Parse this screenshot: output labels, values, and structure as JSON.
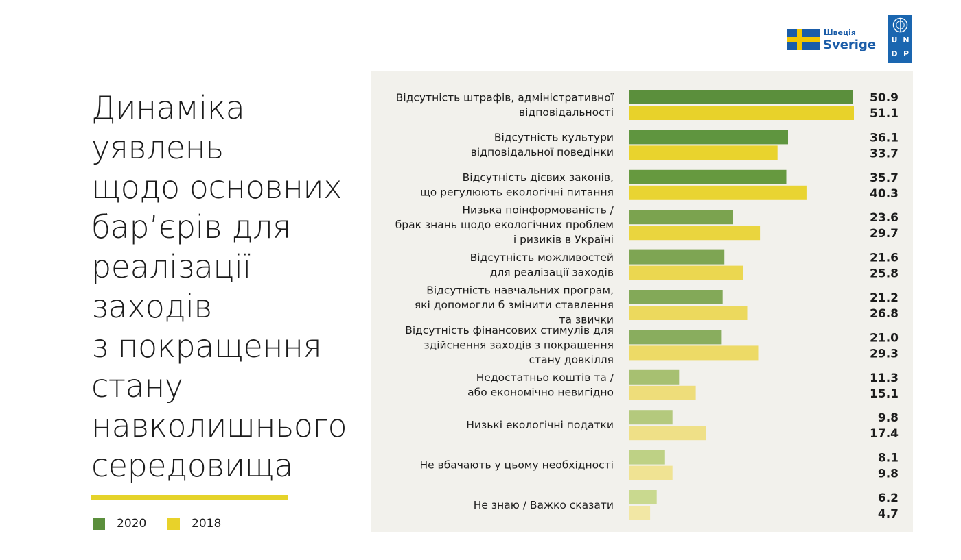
{
  "header": {
    "sweden_small": "Швеція",
    "sweden_big": "Sverige",
    "undp_letters": [
      "U",
      "N",
      "D",
      "P"
    ]
  },
  "title": "Динаміка\nуявлень\nщодо основних\nбар’єрів для\nреалізації\nзаходів\nз покращення\nстану\nнавколишнього\nсередовища",
  "legend": [
    {
      "label": "2020",
      "color": "#5b8f3c"
    },
    {
      "label": "2018",
      "color": "#e8d22a"
    }
  ],
  "colors": {
    "accent_rule": "#e5d32a",
    "panel_bg": "#f2f1ec"
  },
  "chart_data": {
    "type": "bar",
    "orientation": "horizontal",
    "categories": [
      "Відсутність штрафів, адміністративної\nвідповідальності",
      "Відсутність культури\nвідповідальної поведінки",
      "Відсутність дієвих законів,\nщо регулюють екологічні питання",
      "Низька поінформованість /\nбрак знань щодо екологічних проблем\nі ризиків в Україні",
      "Відсутність можливостей\nдля реалізації заходів",
      "Відсутність навчальних програм,\nякі допомогли б змінити ставлення\nта звички",
      "Відсутність фінансових стимулів для\nздійснення заходів з покращення\nстану довкілля",
      "Недостатньо коштів та /\nабо економічно невигідно",
      "Низькі екологічні податки",
      "Не вбачають у цьому необхідності",
      "Не знаю / Важко сказати"
    ],
    "series": [
      {
        "name": "2020",
        "values": [
          50.9,
          36.1,
          35.7,
          23.6,
          21.6,
          21.2,
          21.0,
          11.3,
          9.8,
          8.1,
          6.2
        ]
      },
      {
        "name": "2018",
        "values": [
          51.1,
          33.7,
          40.3,
          29.7,
          25.8,
          26.8,
          29.3,
          15.1,
          17.4,
          9.8,
          4.7
        ]
      }
    ],
    "value_labels_2020": [
      "50.9",
      "36.1",
      "35.7",
      "23.6",
      "21.6",
      "21.2",
      "21.0",
      "11.3",
      "9.8",
      "8.1",
      "6.2"
    ],
    "value_labels_2018": [
      "51.1",
      "33.7",
      "40.3",
      "29.7",
      "25.8",
      "26.8",
      "29.3",
      "15.1",
      "17.4",
      "9.8",
      "4.7"
    ],
    "bar_colors_2020": [
      "#5b8f3c",
      "#5f953f",
      "#66993f",
      "#7ba34f",
      "#7ea553",
      "#83a958",
      "#89ad5e",
      "#a7c071",
      "#b4c97d",
      "#bed185",
      "#c9d98f"
    ],
    "bar_colors_2018": [
      "#e8d22a",
      "#e9d32d",
      "#e9d432",
      "#ead53e",
      "#ebd750",
      "#ecd95d",
      "#edda66",
      "#eedd7a",
      "#efe087",
      "#f0e393",
      "#f2e7a4"
    ]
  }
}
